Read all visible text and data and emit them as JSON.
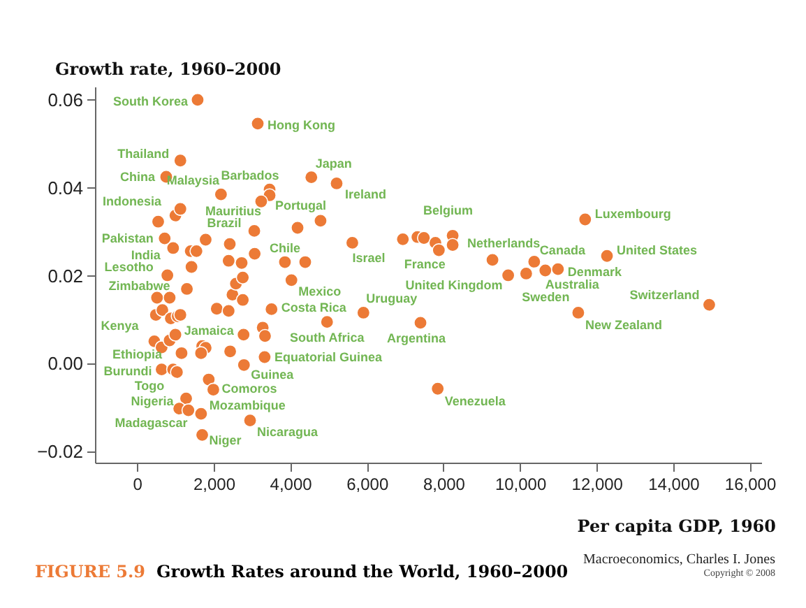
{
  "chart_data": {
    "type": "scatter",
    "title": "Growth Rates around the World, 1960–2000",
    "xlabel": "Per capita GDP, 1960",
    "ylabel": "Growth rate, 1960–2000",
    "color": "#ec7a36",
    "marker": "circle",
    "x": [
      1580,
      3150,
      1130,
      760,
      2190,
      3460,
      3460,
      3240,
      4550,
      5210,
      1000,
      1130,
      550,
      3060,
      4190,
      4790,
      720,
      1790,
      2420,
      940,
      1400,
      1550,
      2390,
      2730,
      3070,
      3860,
      4390,
      5620,
      1420,
      790,
      1300,
      520,
      850,
      490,
      660,
      880,
      1060,
      1130,
      450,
      640,
      850,
      1000,
      1160,
      640,
      940,
      1040,
      1280,
      1100,
      1340,
      1670,
      1700,
      1870,
      1990,
      2950,
      1700,
      1790,
      1670,
      2430,
      2790,
      3330,
      2780,
      3280,
      3340,
      4960,
      3510,
      2080,
      2390,
      2490,
      2760,
      2580,
      2760,
      4030,
      5910,
      6940,
      7320,
      7490,
      7790,
      7880,
      8240,
      8240,
      11700,
      9280,
      10370,
      10660,
      10990,
      12270,
      9690,
      10160,
      14940,
      11520,
      7400,
      7850
    ],
    "values": [
      0.06,
      0.0546,
      0.0462,
      0.0425,
      0.0385,
      0.0396,
      0.0383,
      0.0369,
      0.0424,
      0.041,
      0.0337,
      0.0352,
      0.0323,
      0.0302,
      0.0309,
      0.0325,
      0.0285,
      0.0282,
      0.0272,
      0.0263,
      0.0256,
      0.0256,
      0.0234,
      0.0229,
      0.025,
      0.0231,
      0.0231,
      0.0275,
      0.022,
      0.0201,
      0.017,
      0.015,
      0.015,
      0.0111,
      0.0122,
      0.0103,
      0.0108,
      0.0111,
      0.0051,
      0.0037,
      0.0053,
      0.0066,
      0.0024,
      -0.0013,
      -0.0013,
      -0.0019,
      -0.0079,
      -0.0102,
      -0.0106,
      -0.0114,
      -0.0162,
      -0.0036,
      -0.0059,
      -0.0129,
      0.004,
      0.0036,
      0.0024,
      0.0028,
      -0.0003,
      0.0015,
      0.0066,
      0.0082,
      0.0063,
      0.0095,
      0.0124,
      0.0125,
      0.012,
      0.0157,
      0.0145,
      0.0182,
      0.0196,
      0.019,
      0.0116,
      0.0283,
      0.0288,
      0.0286,
      0.0275,
      0.0258,
      0.0291,
      0.027,
      0.0328,
      0.0236,
      0.0232,
      0.0212,
      0.0215,
      0.0245,
      0.0201,
      0.0205,
      0.0134,
      0.0116,
      0.0093,
      -0.0057
    ],
    "xlim": [
      -1100,
      16300
    ],
    "ylim": [
      -0.0225,
      0.063
    ],
    "xticks": [
      {
        "value": 0,
        "label": "0"
      },
      {
        "value": 2000,
        "label": "2,000"
      },
      {
        "value": 4000,
        "label": "4,000"
      },
      {
        "value": 6000,
        "label": "6,000"
      },
      {
        "value": 8000,
        "label": "8,000"
      },
      {
        "value": 10000,
        "label": "10,000"
      },
      {
        "value": 12000,
        "label": "12,000"
      },
      {
        "value": 14000,
        "label": "14,000"
      },
      {
        "value": 16000,
        "label": "16,000"
      }
    ],
    "yticks": [
      {
        "value": -0.02,
        "label": "−0.02"
      },
      {
        "value": 0,
        "label": "0.00"
      },
      {
        "value": 0.02,
        "label": "0.02"
      },
      {
        "value": 0.04,
        "label": "0.04"
      },
      {
        "value": 0.06,
        "label": "0.06"
      }
    ],
    "annotations": [
      {
        "text": "South Korea",
        "x": 1580,
        "y": 0.06
      },
      {
        "text": "Hong Kong",
        "x": 3150,
        "y": 0.0546
      },
      {
        "text": "Thailand",
        "x": 1130,
        "y": 0.0462
      },
      {
        "text": "China",
        "x": 760,
        "y": 0.0425
      },
      {
        "text": "Malaysia",
        "x": 2190,
        "y": 0.0385
      },
      {
        "text": "Barbados",
        "x": 3460,
        "y": 0.0396
      },
      {
        "text": "Japan",
        "x": 4550,
        "y": 0.0424
      },
      {
        "text": "Ireland",
        "x": 5210,
        "y": 0.041
      },
      {
        "text": "Indonesia",
        "x": 1000,
        "y": 0.0337
      },
      {
        "text": "Mauritius",
        "x": 3060,
        "y": 0.0302
      },
      {
        "text": "Portugal",
        "x": 3240,
        "y": 0.0369
      },
      {
        "text": "Brazil",
        "x": 2420,
        "y": 0.0272
      },
      {
        "text": "Pakistan",
        "x": 720,
        "y": 0.0285
      },
      {
        "text": "India",
        "x": 940,
        "y": 0.0263
      },
      {
        "text": "Chile",
        "x": 3860,
        "y": 0.0231
      },
      {
        "text": "Israel",
        "x": 5620,
        "y": 0.0275
      },
      {
        "text": "Lesotho",
        "x": 790,
        "y": 0.0201
      },
      {
        "text": "Zimbabwe",
        "x": 1300,
        "y": 0.017
      },
      {
        "text": "Mexico",
        "x": 4030,
        "y": 0.019
      },
      {
        "text": "Costa Rica",
        "x": 3510,
        "y": 0.0124
      },
      {
        "text": "Kenya",
        "x": 880,
        "y": 0.0103
      },
      {
        "text": "Jamaica",
        "x": 2780,
        "y": 0.0066
      },
      {
        "text": "South Africa",
        "x": 4960,
        "y": 0.0095
      },
      {
        "text": "Ethiopia",
        "x": 1160,
        "y": 0.0024
      },
      {
        "text": "Burundi",
        "x": 640,
        "y": -0.0013
      },
      {
        "text": "Equatorial Guinea",
        "x": 3330,
        "y": 0.0015
      },
      {
        "text": "Guinea",
        "x": 2790,
        "y": -0.0003
      },
      {
        "text": "Togo",
        "x": 1040,
        "y": -0.0019
      },
      {
        "text": "Comoros",
        "x": 1990,
        "y": -0.0059
      },
      {
        "text": "Nigeria",
        "x": 1280,
        "y": -0.0079
      },
      {
        "text": "Mozambique",
        "x": 1670,
        "y": -0.0114
      },
      {
        "text": "Madagascar",
        "x": 1100,
        "y": -0.0102
      },
      {
        "text": "Niger",
        "x": 1700,
        "y": -0.0162
      },
      {
        "text": "Nicaragua",
        "x": 2950,
        "y": -0.0129
      },
      {
        "text": "Uruguay",
        "x": 5910,
        "y": 0.0116
      },
      {
        "text": "Argentina",
        "x": 7400,
        "y": 0.0093
      },
      {
        "text": "Venezuela",
        "x": 7850,
        "y": -0.0057
      },
      {
        "text": "Belgium",
        "x": 7790,
        "y": 0.0275
      },
      {
        "text": "France",
        "x": 7880,
        "y": 0.0258
      },
      {
        "text": "Netherlands",
        "x": 9280,
        "y": 0.0236
      },
      {
        "text": "Canada",
        "x": 10370,
        "y": 0.0232
      },
      {
        "text": "United Kingdom",
        "x": 9690,
        "y": 0.0201
      },
      {
        "text": "Sweden",
        "x": 10160,
        "y": 0.0205
      },
      {
        "text": "Australia",
        "x": 10660,
        "y": 0.0212
      },
      {
        "text": "Denmark",
        "x": 10990,
        "y": 0.0215
      },
      {
        "text": "Luxembourg",
        "x": 11700,
        "y": 0.0328
      },
      {
        "text": "United States",
        "x": 12270,
        "y": 0.0245
      },
      {
        "text": "Switzerland",
        "x": 14940,
        "y": 0.0134
      },
      {
        "text": "New Zealand",
        "x": 11520,
        "y": 0.0116
      },
      "FIGURE 5.9",
      "Macroeconomics, Charles I. Jones",
      "Copyright © 2008"
    ]
  }
}
